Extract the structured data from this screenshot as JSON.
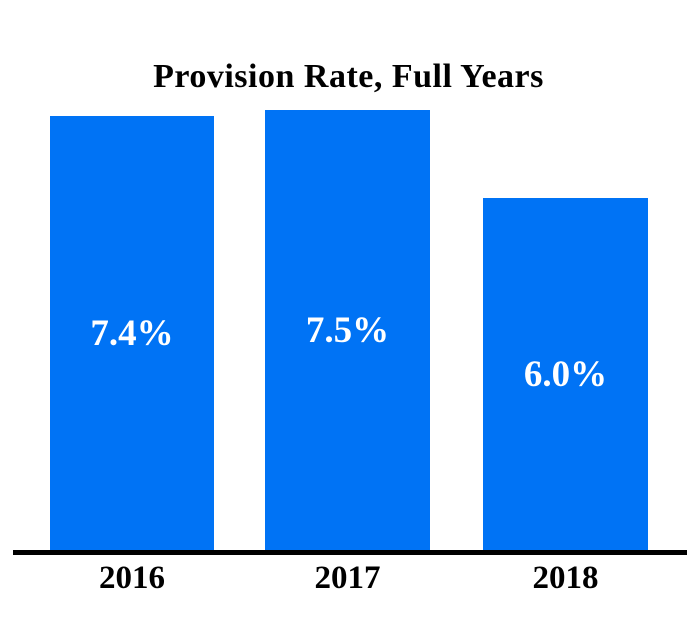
{
  "chart_data": {
    "type": "bar",
    "title": "Provision Rate, Full Years",
    "categories": [
      "2016",
      "2017",
      "2018"
    ],
    "values": [
      7.4,
      7.5,
      6.0
    ],
    "value_labels": [
      "7.4%",
      "7.5%",
      "6.0%"
    ],
    "ylim": [
      0,
      7.5
    ],
    "xlabel": "",
    "ylabel": "",
    "grid": false,
    "legend": false,
    "bar_color": "#0073f5",
    "value_label_color": "#ffffff",
    "axis_color": "#000000",
    "title_color": "#000000"
  }
}
